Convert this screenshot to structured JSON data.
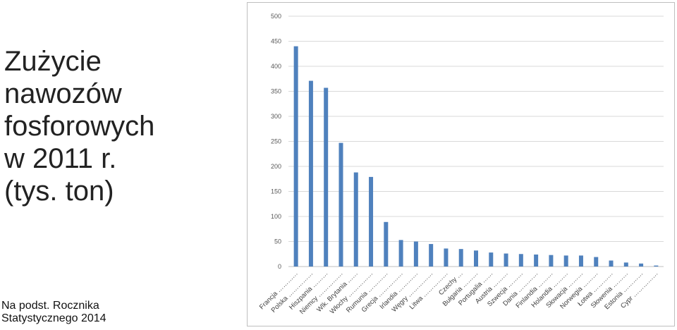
{
  "title_lines": [
    "Zużycie",
    "nawozów",
    "fosforowych",
    "w 2011 r.",
    "(tys. ton)"
  ],
  "source_lines": [
    "Na podst. Rocznika",
    "Statystycznego 2014"
  ],
  "colors": {
    "bar": "#4f81bd",
    "grid": "#d9d9d9",
    "text": "#595959"
  },
  "chart_data": {
    "type": "bar",
    "title": "",
    "xlabel": "",
    "ylabel": "",
    "ylim": [
      0,
      500
    ],
    "yticks": [
      0,
      50,
      100,
      150,
      200,
      250,
      300,
      350,
      400,
      450,
      500
    ],
    "grid": true,
    "legend": "none",
    "categories": [
      "Francja …………",
      "Polska ……………",
      "Hiszpania ………",
      "Niemcy ……………",
      "Wlk. Brytania ……",
      "Włochy ……………",
      "Rumunia …………",
      "Grecja ……………",
      "Irlandia …………",
      "Węgry ……………",
      "Litwa ……………",
      "Czechy …",
      "Bułgaria ………",
      "Portugalia ……",
      "Austria ………",
      "Szwecja ………",
      "Dania …………",
      "Finlandia ………",
      "Holandia ………",
      "Słowacja ………",
      "Norwegia ………",
      "Łotwa …………",
      "Słowenia ………",
      "Estonia …………",
      "Cypr ……………"
    ],
    "values": [
      440,
      371,
      357,
      247,
      188,
      179,
      89,
      53,
      50,
      45,
      36,
      35,
      32,
      28,
      26,
      25,
      24,
      23,
      22,
      22,
      19,
      12,
      8,
      6,
      2
    ]
  }
}
